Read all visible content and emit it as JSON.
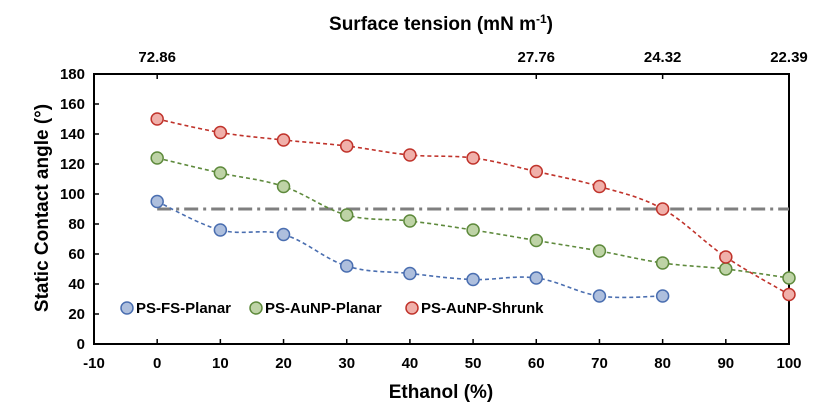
{
  "chart_data": {
    "type": "line",
    "title": "",
    "xlabel": "Ethanol (%)",
    "ylabel": "Static Contact angle (°)",
    "top_axis": {
      "label": "Surface tension (mN m",
      "label_superscript": "-1",
      "label_suffix": ")",
      "ticks": [
        {
          "x": 0,
          "label": "72.86"
        },
        {
          "x": 60,
          "label": "27.76"
        },
        {
          "x": 80,
          "label": "24.32"
        },
        {
          "x": 100,
          "label": "22.39"
        }
      ]
    },
    "xlim": [
      -10,
      100
    ],
    "ylim": [
      0,
      180
    ],
    "x_ticks": [
      "-10",
      "0",
      "10",
      "20",
      "30",
      "40",
      "50",
      "60",
      "70",
      "80",
      "90",
      "100"
    ],
    "y_ticks": [
      "0",
      "20",
      "40",
      "60",
      "80",
      "100",
      "120",
      "140",
      "160",
      "180"
    ],
    "reference_line": {
      "y": 90,
      "x_range": [
        0,
        100
      ],
      "style": "dash-dot",
      "color": "#7f7f7f"
    },
    "legend_position": "bottom-left",
    "series": [
      {
        "name": "PS-FS-Planar",
        "color": "#4a6eb0",
        "fill": "#aebfdd",
        "x": [
          0,
          10,
          20,
          30,
          40,
          50,
          60,
          70,
          80
        ],
        "values": [
          95,
          76,
          73,
          52,
          47,
          43,
          44,
          32,
          32
        ]
      },
      {
        "name": "PS-AuNP-Planar",
        "color": "#5e8a3c",
        "fill": "#bed3a6",
        "x": [
          0,
          10,
          20,
          30,
          40,
          50,
          60,
          70,
          80,
          90,
          100
        ],
        "values": [
          124,
          114,
          105,
          86,
          82,
          76,
          69,
          62,
          54,
          50,
          44
        ]
      },
      {
        "name": "PS-AuNP-Shrunk",
        "color": "#c0332b",
        "fill": "#f0b0aa",
        "x": [
          0,
          10,
          20,
          30,
          40,
          50,
          60,
          70,
          80,
          90,
          100
        ],
        "values": [
          150,
          141,
          136,
          132,
          126,
          124,
          115,
          105,
          90,
          58,
          33
        ]
      }
    ]
  }
}
